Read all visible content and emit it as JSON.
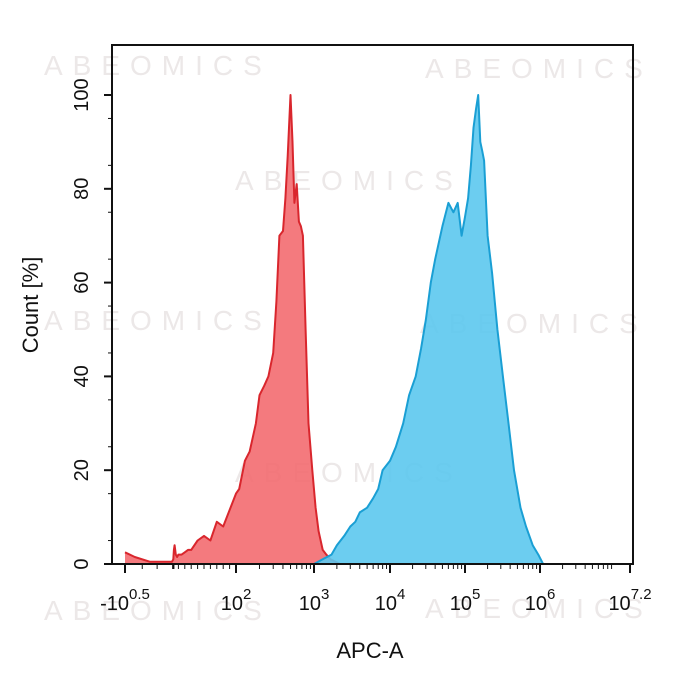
{
  "watermark": "ABEOMICS",
  "chart_data": {
    "type": "area",
    "title": "",
    "xlabel": "APC-A",
    "ylabel": "Count [%]",
    "x_scale": "log",
    "xlim": [
      -3.16,
      15849000
    ],
    "ylim": [
      0,
      100
    ],
    "x_ticks": [
      {
        "value": -3.16,
        "base": "-10",
        "exp": "0.5"
      },
      {
        "value": 100,
        "base": "10",
        "exp": "2"
      },
      {
        "value": 1000,
        "base": "10",
        "exp": "3"
      },
      {
        "value": 10000,
        "base": "10",
        "exp": "4"
      },
      {
        "value": 100000,
        "base": "10",
        "exp": "5"
      },
      {
        "value": 1000000,
        "base": "10",
        "exp": "6"
      },
      {
        "value": 15849000,
        "base": "10",
        "exp": "7.2"
      }
    ],
    "y_ticks": [
      "0",
      "20",
      "40",
      "60",
      "80",
      "100"
    ],
    "grid": false,
    "legend": "none",
    "series": [
      {
        "color": "#f36b70",
        "stroke": "#d9262d",
        "x": [
          -3.16,
          -2.5,
          -1.5,
          0,
          2,
          3,
          4,
          5,
          6,
          8,
          10,
          15,
          20,
          25,
          30,
          40,
          50,
          60,
          70,
          80,
          100,
          110,
          130,
          150,
          180,
          200,
          230,
          260,
          300,
          330,
          360,
          400,
          430,
          460,
          500,
          530,
          560,
          600,
          640,
          680,
          720,
          780,
          850,
          950,
          1050,
          1150,
          1300,
          1450,
          1650,
          1900,
          2200
        ],
        "y": [
          2.5,
          1.5,
          0.5,
          0.5,
          1,
          3,
          4,
          3,
          2,
          1.5,
          2,
          2,
          2.5,
          3,
          3,
          5,
          6,
          5,
          9,
          8,
          15,
          16,
          22,
          24,
          30,
          36,
          38,
          40,
          45,
          56,
          70,
          71,
          78,
          87,
          100,
          90,
          77,
          81,
          73,
          72,
          70,
          50,
          30,
          20,
          12,
          7,
          3,
          2,
          1,
          0.5,
          0
        ]
      },
      {
        "color": "#5cc8ee",
        "stroke": "#1a9fd4",
        "x": [
          1000,
          1300,
          1700,
          2000,
          2500,
          3000,
          3500,
          4000,
          5000,
          6000,
          7000,
          8000,
          10000,
          12000,
          15000,
          18000,
          22000,
          26000,
          30000,
          35000,
          40000,
          50000,
          60000,
          70000,
          80000,
          90000,
          100000,
          110000,
          120000,
          130000,
          140000,
          150000,
          160000,
          170000,
          180000,
          200000,
          230000,
          270000,
          320000,
          380000,
          450000,
          550000,
          650000,
          800000,
          950000,
          1100000
        ],
        "y": [
          0,
          1,
          2,
          4,
          6,
          8,
          9,
          11,
          12,
          14,
          16,
          20,
          22,
          25,
          30,
          36,
          40,
          46,
          52,
          60,
          65,
          72,
          77,
          75,
          77,
          70,
          74,
          78,
          85,
          93,
          97,
          100,
          90,
          88,
          86,
          70,
          62,
          50,
          40,
          30,
          20,
          12,
          8,
          4,
          2,
          0
        ]
      }
    ]
  }
}
